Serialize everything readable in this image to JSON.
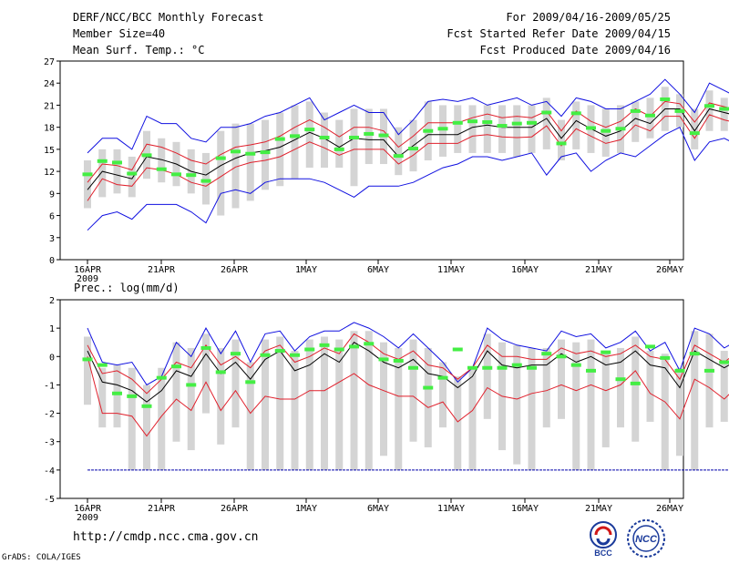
{
  "header": {
    "left": [
      "DERF/NCC/BCC Monthly Forecast",
      "Member Size=40",
      "Mean Surf. Temp.: °C"
    ],
    "right": [
      "For 2009/04/16-2009/05/25",
      "Fcst Started Refer Date 2009/04/15",
      "Fcst Produced Date 2009/04/16"
    ]
  },
  "lower_title": "Prec.: log(mm/d)",
  "footer": {
    "url": "http://cmdp.ncc.cma.gov.cn",
    "grads": "GrADS: COLA/IGES",
    "logo_bcc": "BCC",
    "logo_ncc": "NCC"
  },
  "colors": {
    "black": "#000000",
    "red": "#e0202c",
    "blue": "#1010e0",
    "box": "#d4d4d4",
    "green": "#44ee44",
    "dashed": "#0000aa"
  },
  "chart_data": [
    {
      "type": "line",
      "title": "Mean Surf. Temp.: °C",
      "x_labels": [
        "16APR",
        "21APR",
        "26APR",
        "1MAY",
        "6MAY",
        "11MAY",
        "16MAY",
        "21MAY",
        "26MAY"
      ],
      "x_sublabel": "2009",
      "ylim": [
        0,
        27
      ],
      "yticks": [
        0,
        3,
        6,
        9,
        12,
        15,
        18,
        21,
        24,
        27
      ],
      "series": [
        {
          "name": "mean",
          "values": [
            9.5,
            12,
            11.5,
            11,
            14,
            13.6,
            13,
            12,
            11.5,
            12.8,
            13.8,
            14.5,
            14.8,
            15.3,
            16.3,
            17.3,
            16.5,
            15.3,
            16.5,
            16.3,
            16.3,
            14,
            15.5,
            17,
            17,
            17,
            18,
            18.3,
            18,
            18,
            18,
            19.2,
            16.5,
            18.9,
            17.8,
            16.8,
            17.5,
            19.2,
            18.5,
            20.5,
            20.5,
            17.5,
            20.5,
            20,
            19.5
          ]
        },
        {
          "name": "upper",
          "values": [
            10.5,
            13,
            12.8,
            12.2,
            15.7,
            15.3,
            14.5,
            13.5,
            13,
            14.3,
            15.3,
            15.6,
            16,
            16.8,
            18,
            19,
            18,
            16.7,
            18,
            18,
            17.5,
            15.3,
            16.8,
            18.6,
            18.6,
            18.6,
            19.3,
            19.8,
            19.3,
            19.5,
            19.3,
            20.2,
            17.5,
            20.2,
            18.8,
            18,
            18.8,
            20.5,
            19.5,
            21.5,
            21.2,
            18.7,
            21.3,
            20.8,
            20.3
          ]
        },
        {
          "name": "lower",
          "values": [
            8,
            11,
            10.2,
            10,
            12.5,
            12.2,
            11.6,
            10.5,
            10,
            11.3,
            12.6,
            13.2,
            13.5,
            14,
            15,
            16,
            15.2,
            14.2,
            15,
            15,
            15,
            13,
            14.2,
            15.8,
            15.8,
            15.8,
            16.8,
            17,
            16.7,
            16.6,
            16.7,
            18.2,
            15.5,
            17.8,
            16.8,
            15.8,
            16.3,
            18.3,
            17.5,
            19.5,
            19.5,
            16.5,
            19.7,
            19,
            18.5
          ]
        },
        {
          "name": "max",
          "values": [
            14.5,
            16.5,
            16.5,
            15,
            19.5,
            18.5,
            18.5,
            16.5,
            16,
            18,
            18,
            18.5,
            19.5,
            20,
            21,
            22,
            19,
            20,
            21,
            20,
            20,
            17,
            19,
            21.5,
            21.8,
            21.5,
            22,
            21,
            21.5,
            22,
            21,
            21.5,
            19.5,
            22,
            21.5,
            20.5,
            20.5,
            21.5,
            22.5,
            24.5,
            22.5,
            20,
            24,
            23,
            22
          ]
        },
        {
          "name": "min",
          "values": [
            4,
            6,
            6.5,
            5.5,
            7.5,
            7.5,
            7.5,
            6.5,
            5,
            9,
            9.5,
            9,
            10.5,
            11,
            11,
            11,
            10.5,
            9.5,
            8.5,
            10,
            10,
            10,
            10.5,
            11.5,
            12.5,
            13,
            14,
            14,
            13.5,
            14,
            14.5,
            11.5,
            14,
            14.5,
            12,
            13.5,
            14.5,
            14,
            15.5,
            17,
            18,
            13.5,
            16,
            16.5,
            15.5
          ]
        },
        {
          "name": "box_top",
          "values": [
            13.5,
            15,
            15,
            14,
            17.5,
            16.5,
            16,
            15,
            14.5,
            17.5,
            18.5,
            18.5,
            19,
            20,
            21,
            21.5,
            20,
            19,
            20.5,
            20.5,
            20.5,
            18,
            19,
            21.5,
            21,
            21,
            21,
            21,
            21,
            21,
            21,
            22,
            19,
            21.5,
            21,
            20.5,
            21,
            21.5,
            22,
            23.5,
            22.5,
            20.5,
            23,
            22,
            22
          ]
        },
        {
          "name": "box_bottom",
          "values": [
            7,
            8.5,
            9,
            8.5,
            11,
            10.5,
            10,
            9,
            7.5,
            6,
            7,
            8,
            9.5,
            10,
            11,
            12.5,
            12.5,
            12.5,
            10,
            13,
            13,
            11.5,
            12,
            13.5,
            14,
            14.5,
            14.5,
            14.5,
            14.5,
            14,
            14.5,
            15,
            13.5,
            15,
            14.5,
            14,
            14.5,
            16,
            16.5,
            17.5,
            18,
            15,
            17.5,
            17.5,
            17
          ]
        },
        {
          "name": "obs",
          "values": [
            11.6,
            13.4,
            13.2,
            11.7,
            14.2,
            12.3,
            11.6,
            11.5,
            10.7,
            13.8,
            14.7,
            14.4,
            14.6,
            16.4,
            16.8,
            17.7,
            16.6,
            15,
            16.6,
            17.1,
            16.9,
            14.1,
            15.1,
            17.5,
            17.8,
            18.6,
            18.8,
            18.7,
            18.2,
            18.5,
            18.6,
            20,
            15.8,
            19.9,
            17.9,
            17.5,
            17.8,
            20.2,
            19.6,
            21.8,
            20.2,
            17.2,
            20.9,
            20.5,
            20.3
          ]
        }
      ]
    },
    {
      "type": "line",
      "title": "Prec.: log(mm/d)",
      "x_labels": [
        "16APR",
        "21APR",
        "26APR",
        "1MAY",
        "6MAY",
        "11MAY",
        "16MAY",
        "21MAY",
        "26MAY"
      ],
      "x_sublabel": "2009",
      "ylim": [
        -5,
        2
      ],
      "yticks": [
        -5,
        -4,
        -3,
        -2,
        -1,
        0,
        1,
        2
      ],
      "reference_line": -4,
      "series": [
        {
          "name": "mean",
          "values": [
            0.2,
            -0.9,
            -1,
            -1.2,
            -1.6,
            -1.2,
            -0.5,
            -0.7,
            0.1,
            -0.6,
            -0.2,
            -0.8,
            -0.1,
            0.2,
            -0.5,
            -0.3,
            0.1,
            -0.2,
            0.5,
            0.2,
            -0.2,
            -0.4,
            -0.1,
            -0.6,
            -0.7,
            -1.1,
            -0.7,
            0.2,
            -0.3,
            -0.4,
            -0.3,
            -0.3,
            0.1,
            -0.2,
            0,
            -0.3,
            -0.2,
            0.2,
            -0.3,
            -0.4,
            -1.1,
            0.2,
            -0.1,
            -0.4,
            -0.1
          ]
        },
        {
          "name": "upper",
          "values": [
            0.4,
            -0.6,
            -0.5,
            -0.8,
            -1.3,
            -0.8,
            -0.2,
            -0.4,
            0.4,
            -0.3,
            0,
            -0.4,
            0.2,
            0.4,
            -0.2,
            0,
            0.3,
            0.1,
            0.8,
            0.5,
            0.1,
            -0.1,
            0.2,
            -0.3,
            -0.4,
            -0.8,
            -0.4,
            0.4,
            0,
            0,
            -0.1,
            -0.1,
            0.3,
            0.1,
            0.2,
            0,
            0.1,
            0.4,
            0,
            -0.1,
            -0.8,
            0.4,
            0.1,
            -0.2,
            0.2
          ]
        },
        {
          "name": "lower",
          "values": [
            0,
            -2,
            -2,
            -2.1,
            -2.8,
            -2.1,
            -1.5,
            -1.9,
            -0.9,
            -1.9,
            -1.2,
            -2,
            -1.4,
            -1.5,
            -1.5,
            -1.2,
            -1.2,
            -0.9,
            -0.6,
            -1,
            -1.2,
            -1.4,
            -1.4,
            -1.8,
            -1.6,
            -2.3,
            -1.9,
            -1.1,
            -1.4,
            -1.5,
            -1.3,
            -1.2,
            -1,
            -1.2,
            -1,
            -1.2,
            -1,
            -0.5,
            -1.3,
            -1.6,
            -2.2,
            -0.8,
            -1.1,
            -1.5,
            -1
          ]
        },
        {
          "name": "max",
          "values": [
            1,
            -0.2,
            -0.3,
            -0.2,
            -1,
            -0.7,
            0.5,
            0,
            1,
            0.1,
            0.9,
            -0.2,
            0.8,
            0.9,
            0.2,
            0.7,
            0.9,
            0.9,
            1.2,
            1,
            0.7,
            0.3,
            0.8,
            0.3,
            -0.2,
            -0.9,
            -0.4,
            1,
            0.6,
            0.4,
            0.3,
            0.2,
            0.9,
            0.7,
            0.8,
            0.3,
            0.5,
            0.9,
            0.2,
            0.5,
            -0.5,
            1,
            0.8,
            0.3,
            0.6
          ]
        },
        {
          "name": "box_top",
          "values": [
            0.7,
            -0.4,
            -0.3,
            -0.4,
            -1,
            -0.4,
            0.5,
            0.3,
            0.8,
            0.3,
            0.6,
            -0.2,
            0.6,
            0.7,
            0.2,
            0.6,
            0.7,
            0.6,
            0.9,
            0.9,
            0.5,
            0.3,
            0.6,
            0.3,
            -0.2,
            -0.7,
            -0.4,
            0.8,
            0.5,
            0.4,
            0.3,
            0.3,
            0.6,
            0.5,
            0.6,
            0.2,
            0.3,
            0.7,
            0.2,
            0.1,
            -0.4,
            0.9,
            0.8,
            0.2,
            0.9
          ]
        },
        {
          "name": "box_bottom",
          "values": [
            -1.7,
            -2.5,
            -2.5,
            -4,
            -4,
            -4,
            -3,
            -3.3,
            -2,
            -3.1,
            -2.5,
            -4,
            -4,
            -4,
            -4,
            -4,
            -4,
            -4,
            -4,
            -4,
            -3.5,
            -4,
            -3,
            -3.2,
            -2.5,
            -4,
            -4,
            -2.2,
            -3.3,
            -3.8,
            -4,
            -2.5,
            -2.2,
            -4,
            -4,
            -3.2,
            -2.5,
            -3,
            -2.3,
            -4,
            -3.5,
            -4,
            -2.5,
            -2.3,
            -2.6
          ]
        },
        {
          "name": "obs",
          "values": [
            -0.1,
            -0.3,
            -1.3,
            -1.4,
            -1.75,
            -0.75,
            -0.35,
            -1,
            0.3,
            -0.55,
            0.1,
            -0.9,
            0.05,
            0.2,
            0.05,
            0.25,
            0.4,
            0.25,
            0.35,
            0.45,
            -0.1,
            -0.15,
            -0.4,
            -1.1,
            -0.75,
            0.25,
            -0.4,
            -0.4,
            -0.4,
            -0.3,
            -0.4,
            0.1,
            0,
            -0.3,
            -0.5,
            0.15,
            -0.8,
            -0.95,
            0.35,
            -0.05,
            -0.5,
            0.1,
            -0.5,
            -0.2,
            0.15
          ]
        }
      ]
    }
  ]
}
